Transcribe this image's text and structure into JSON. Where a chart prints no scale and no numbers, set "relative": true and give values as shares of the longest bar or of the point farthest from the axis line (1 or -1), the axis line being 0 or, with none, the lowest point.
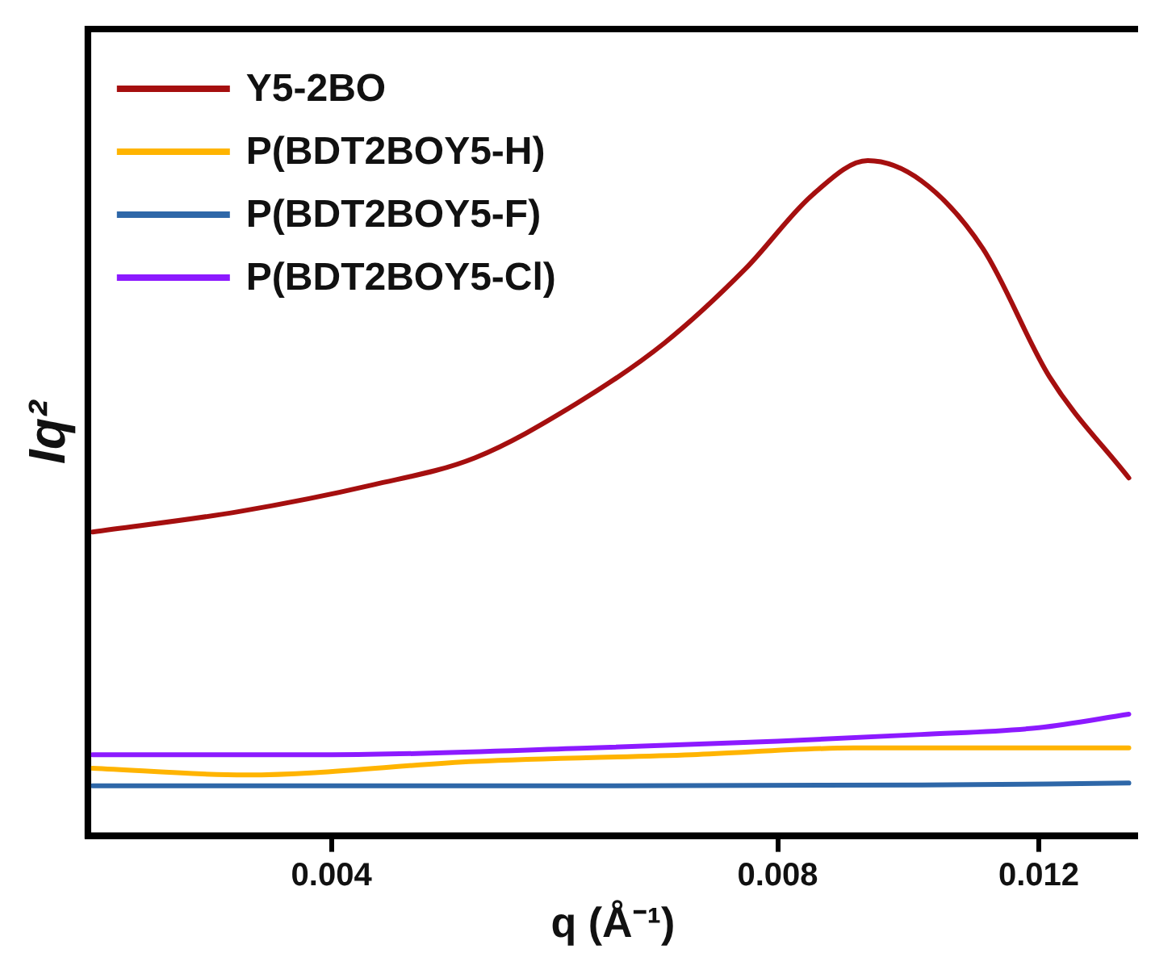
{
  "chart_data": {
    "type": "line",
    "relative": true,
    "xlabel": "q (Å⁻¹)",
    "ylabel": "Iq²",
    "log": "x",
    "xlim": [
      0.00274,
      0.014
    ],
    "xticks": [
      0.004,
      0.008,
      0.012
    ],
    "tick_labels": "x",
    "grid": false,
    "legend": "top left",
    "marker": "none",
    "line_style": "solid",
    "series": [
      {
        "name": "Y5-2BO",
        "color": "#a50f0f",
        "x": [
          0.00276,
          0.00346,
          0.00427,
          0.005,
          0.00585,
          0.00671,
          0.00761,
          0.00845,
          0.0092,
          0.01,
          0.011,
          0.0122,
          0.0138
        ],
        "values": [
          0.45,
          0.48,
          0.52,
          0.56,
          0.64,
          0.73,
          0.84,
          0.95,
          1.0,
          0.97,
          0.87,
          0.68,
          0.53
        ]
      },
      {
        "name": "P(BDT2BOY5-H)",
        "color": "#ffb400",
        "x": [
          0.00276,
          0.0035,
          0.005,
          0.007,
          0.009,
          0.012,
          0.0138
        ],
        "values": [
          0.1,
          0.09,
          0.11,
          0.12,
          0.13,
          0.13,
          0.13
        ]
      },
      {
        "name": "P(BDT2BOY5-F)",
        "color": "#2e67a8",
        "x": [
          0.00276,
          0.006,
          0.01,
          0.0138
        ],
        "values": [
          0.074,
          0.074,
          0.075,
          0.078
        ]
      },
      {
        "name": "P(BDT2BOY5-Cl)",
        "color": "#8c1aff",
        "x": [
          0.00276,
          0.004,
          0.006,
          0.008,
          0.01,
          0.012,
          0.0138
        ],
        "values": [
          0.12,
          0.12,
          0.13,
          0.14,
          0.15,
          0.16,
          0.18
        ]
      }
    ]
  }
}
